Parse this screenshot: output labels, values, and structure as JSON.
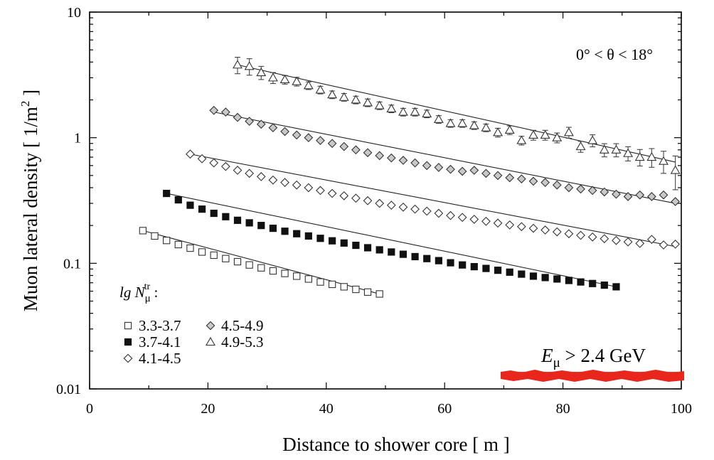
{
  "chart_data": {
    "type": "scatter",
    "xlabel": "Distance to shower core  [ m ]",
    "ylabel_main": "Muon lateral density  [ 1/m",
    "ylabel_sup": "2",
    "ylabel_tail": " ]",
    "x_scale": "linear",
    "y_scale": "log",
    "xlim": [
      0,
      100
    ],
    "ylim": [
      0.01,
      10
    ],
    "x_ticks": [
      0,
      20,
      40,
      60,
      80,
      100
    ],
    "y_ticks": [
      {
        "value": 0.01,
        "label": "0.01"
      },
      {
        "value": 0.1,
        "label": "0.1"
      },
      {
        "value": 1,
        "label": "1"
      },
      {
        "value": 10,
        "label": "10"
      }
    ],
    "grid": false,
    "annotations": {
      "angle_range": "0° < θ < 18°",
      "energy_main": "E",
      "energy_sub": "μ",
      "energy_rest": " > 2.4 GeV"
    },
    "legend": {
      "placement": "bottom-left",
      "title_main": "lg N",
      "title_sub": "μ",
      "title_sup": "tr",
      "title_tail": " :"
    },
    "series": [
      {
        "name": "3.3-3.7",
        "marker": "open-square",
        "x": [
          9,
          11,
          13,
          15,
          17,
          19,
          21,
          23,
          25,
          27,
          29,
          31,
          33,
          35,
          37,
          39,
          41,
          43,
          45,
          47,
          49
        ],
        "y": [
          0.182,
          0.165,
          0.152,
          0.141,
          0.132,
          0.123,
          0.116,
          0.109,
          0.103,
          0.097,
          0.092,
          0.087,
          0.083,
          0.079,
          0.075,
          0.071,
          0.068,
          0.065,
          0.062,
          0.059,
          0.057
        ],
        "fit_y": [
          0.182,
          0.057
        ]
      },
      {
        "name": "3.7-4.1",
        "marker": "filled-square",
        "x": [
          13,
          15,
          17,
          19,
          21,
          23,
          25,
          27,
          29,
          31,
          33,
          35,
          37,
          39,
          41,
          43,
          45,
          47,
          49,
          51,
          53,
          55,
          57,
          59,
          61,
          63,
          65,
          67,
          69,
          71,
          73,
          75,
          77,
          79,
          81,
          83,
          85,
          87,
          89
        ],
        "y": [
          0.36,
          0.32,
          0.29,
          0.27,
          0.25,
          0.235,
          0.22,
          0.21,
          0.2,
          0.19,
          0.18,
          0.172,
          0.165,
          0.158,
          0.151,
          0.145,
          0.139,
          0.133,
          0.128,
          0.123,
          0.118,
          0.113,
          0.109,
          0.105,
          0.101,
          0.097,
          0.094,
          0.091,
          0.088,
          0.085,
          0.082,
          0.079,
          0.077,
          0.075,
          0.073,
          0.071,
          0.069,
          0.067,
          0.065
        ],
        "fit_y": [
          0.36,
          0.065
        ]
      },
      {
        "name": "4.1-4.5",
        "marker": "open-diamond",
        "x": [
          17,
          19,
          21,
          23,
          25,
          27,
          29,
          31,
          33,
          35,
          37,
          39,
          41,
          43,
          45,
          47,
          49,
          51,
          53,
          55,
          57,
          59,
          61,
          63,
          65,
          67,
          69,
          71,
          73,
          75,
          77,
          79,
          81,
          83,
          85,
          87,
          89,
          91,
          93,
          95,
          97,
          99
        ],
        "y": [
          0.74,
          0.68,
          0.63,
          0.59,
          0.55,
          0.52,
          0.49,
          0.46,
          0.44,
          0.42,
          0.4,
          0.38,
          0.36,
          0.345,
          0.33,
          0.315,
          0.3,
          0.29,
          0.28,
          0.27,
          0.26,
          0.25,
          0.24,
          0.232,
          0.224,
          0.216,
          0.209,
          0.202,
          0.196,
          0.19,
          0.184,
          0.178,
          0.172,
          0.167,
          0.162,
          0.157,
          0.152,
          0.148,
          0.144,
          0.155,
          0.14,
          0.142
        ],
        "fit_y": [
          0.74,
          0.136
        ]
      },
      {
        "name": "4.5-4.9",
        "marker": "grey-diamond",
        "x": [
          21,
          23,
          25,
          27,
          29,
          31,
          33,
          35,
          37,
          39,
          41,
          43,
          45,
          47,
          49,
          51,
          53,
          55,
          57,
          59,
          61,
          63,
          65,
          67,
          69,
          71,
          73,
          75,
          77,
          79,
          81,
          83,
          85,
          87,
          89,
          91,
          93,
          95,
          97,
          99
        ],
        "y": [
          1.65,
          1.6,
          1.45,
          1.35,
          1.28,
          1.2,
          1.12,
          1.05,
          1.0,
          0.95,
          0.9,
          0.85,
          0.8,
          0.76,
          0.72,
          0.69,
          0.66,
          0.63,
          0.6,
          0.58,
          0.56,
          0.54,
          0.55,
          0.52,
          0.5,
          0.48,
          0.47,
          0.45,
          0.44,
          0.42,
          0.4,
          0.39,
          0.38,
          0.37,
          0.355,
          0.34,
          0.35,
          0.34,
          0.35,
          0.31
        ],
        "fit_y": [
          1.6,
          0.3
        ]
      },
      {
        "name": "4.9-5.3",
        "marker": "open-triangle",
        "x": [
          25,
          27,
          29,
          31,
          33,
          35,
          37,
          39,
          41,
          43,
          45,
          47,
          49,
          51,
          53,
          55,
          57,
          59,
          61,
          63,
          65,
          67,
          69,
          71,
          73,
          75,
          77,
          79,
          81,
          83,
          85,
          87,
          89,
          91,
          93,
          95,
          97,
          99
        ],
        "y": [
          3.8,
          3.7,
          3.3,
          3.0,
          2.9,
          2.8,
          2.6,
          2.4,
          2.2,
          2.1,
          2.0,
          1.9,
          1.8,
          1.7,
          1.6,
          1.6,
          1.55,
          1.4,
          1.3,
          1.3,
          1.25,
          1.2,
          1.1,
          1.15,
          0.95,
          1.05,
          1.05,
          1.0,
          1.1,
          0.85,
          0.95,
          0.8,
          0.8,
          0.75,
          0.7,
          0.7,
          0.65,
          0.55
        ],
        "err_frac": [
          0.15,
          0.15,
          0.12,
          0.1,
          0.08,
          0.08,
          0.07,
          0.07,
          0.07,
          0.07,
          0.07,
          0.07,
          0.07,
          0.07,
          0.07,
          0.07,
          0.07,
          0.07,
          0.07,
          0.07,
          0.07,
          0.07,
          0.08,
          0.08,
          0.08,
          0.09,
          0.09,
          0.09,
          0.1,
          0.1,
          0.11,
          0.12,
          0.12,
          0.13,
          0.15,
          0.17,
          0.2,
          0.3
        ],
        "fit_y": [
          3.8,
          0.64
        ]
      }
    ]
  }
}
